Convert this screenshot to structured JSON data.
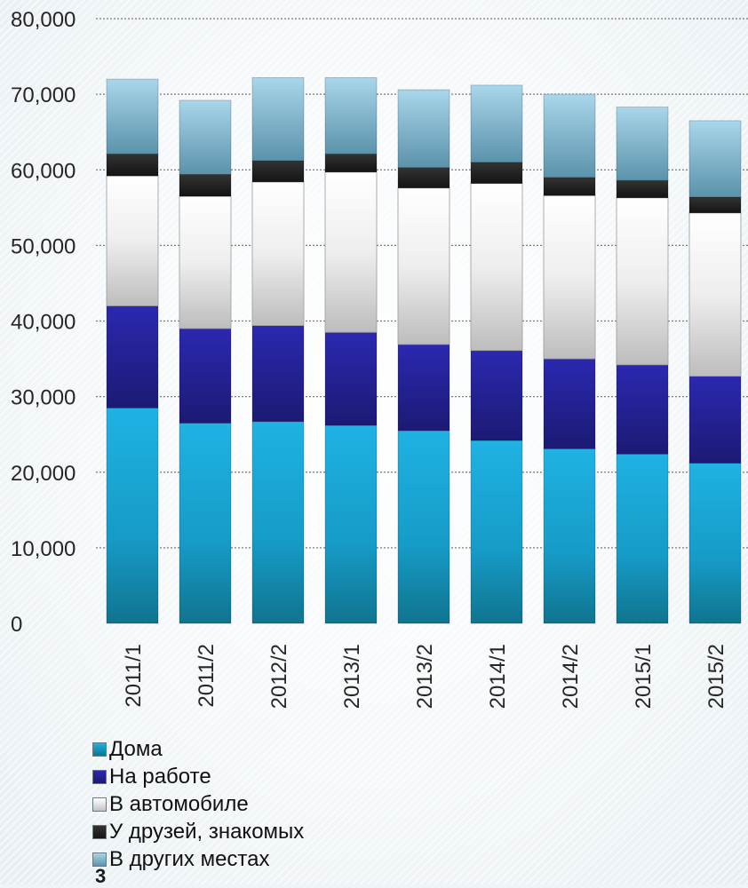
{
  "chart_data": {
    "type": "bar",
    "stacked": true,
    "categories": [
      "2011/1",
      "2011/2",
      "2012/2",
      "2013/1",
      "2013/2",
      "2014/1",
      "2014/2",
      "2015/1",
      "2015/2"
    ],
    "ylim": [
      0,
      80000
    ],
    "yticks": [
      "0",
      "10,000",
      "20,000",
      "30,000",
      "40,000",
      "50,000",
      "60,000",
      "70,000",
      "80,000"
    ],
    "grid": true,
    "legend_position": "bottom",
    "series": [
      {
        "name": "Дома",
        "color": "#1aa3d2",
        "values": [
          28500,
          26500,
          26700,
          26200,
          25500,
          24200,
          23100,
          22400,
          21200
        ]
      },
      {
        "name": "На работе",
        "color": "#23219a",
        "values": [
          13500,
          12500,
          12700,
          12300,
          11400,
          11900,
          11900,
          11800,
          11500
        ]
      },
      {
        "name": "В автомобиле",
        "color": "#e8e8e8",
        "values": [
          17200,
          17500,
          19000,
          21200,
          20700,
          22100,
          21600,
          22100,
          21600
        ]
      },
      {
        "name": "У друзей, знакомых",
        "color": "#1f1f1f",
        "values": [
          2900,
          2900,
          2800,
          2400,
          2700,
          2800,
          2400,
          2300,
          2100
        ]
      },
      {
        "name": "В других местах",
        "color": "#8ec3da",
        "values": [
          9900,
          9800,
          11000,
          10100,
          10300,
          10200,
          11000,
          9700,
          10100
        ]
      }
    ]
  },
  "page_number": "3"
}
